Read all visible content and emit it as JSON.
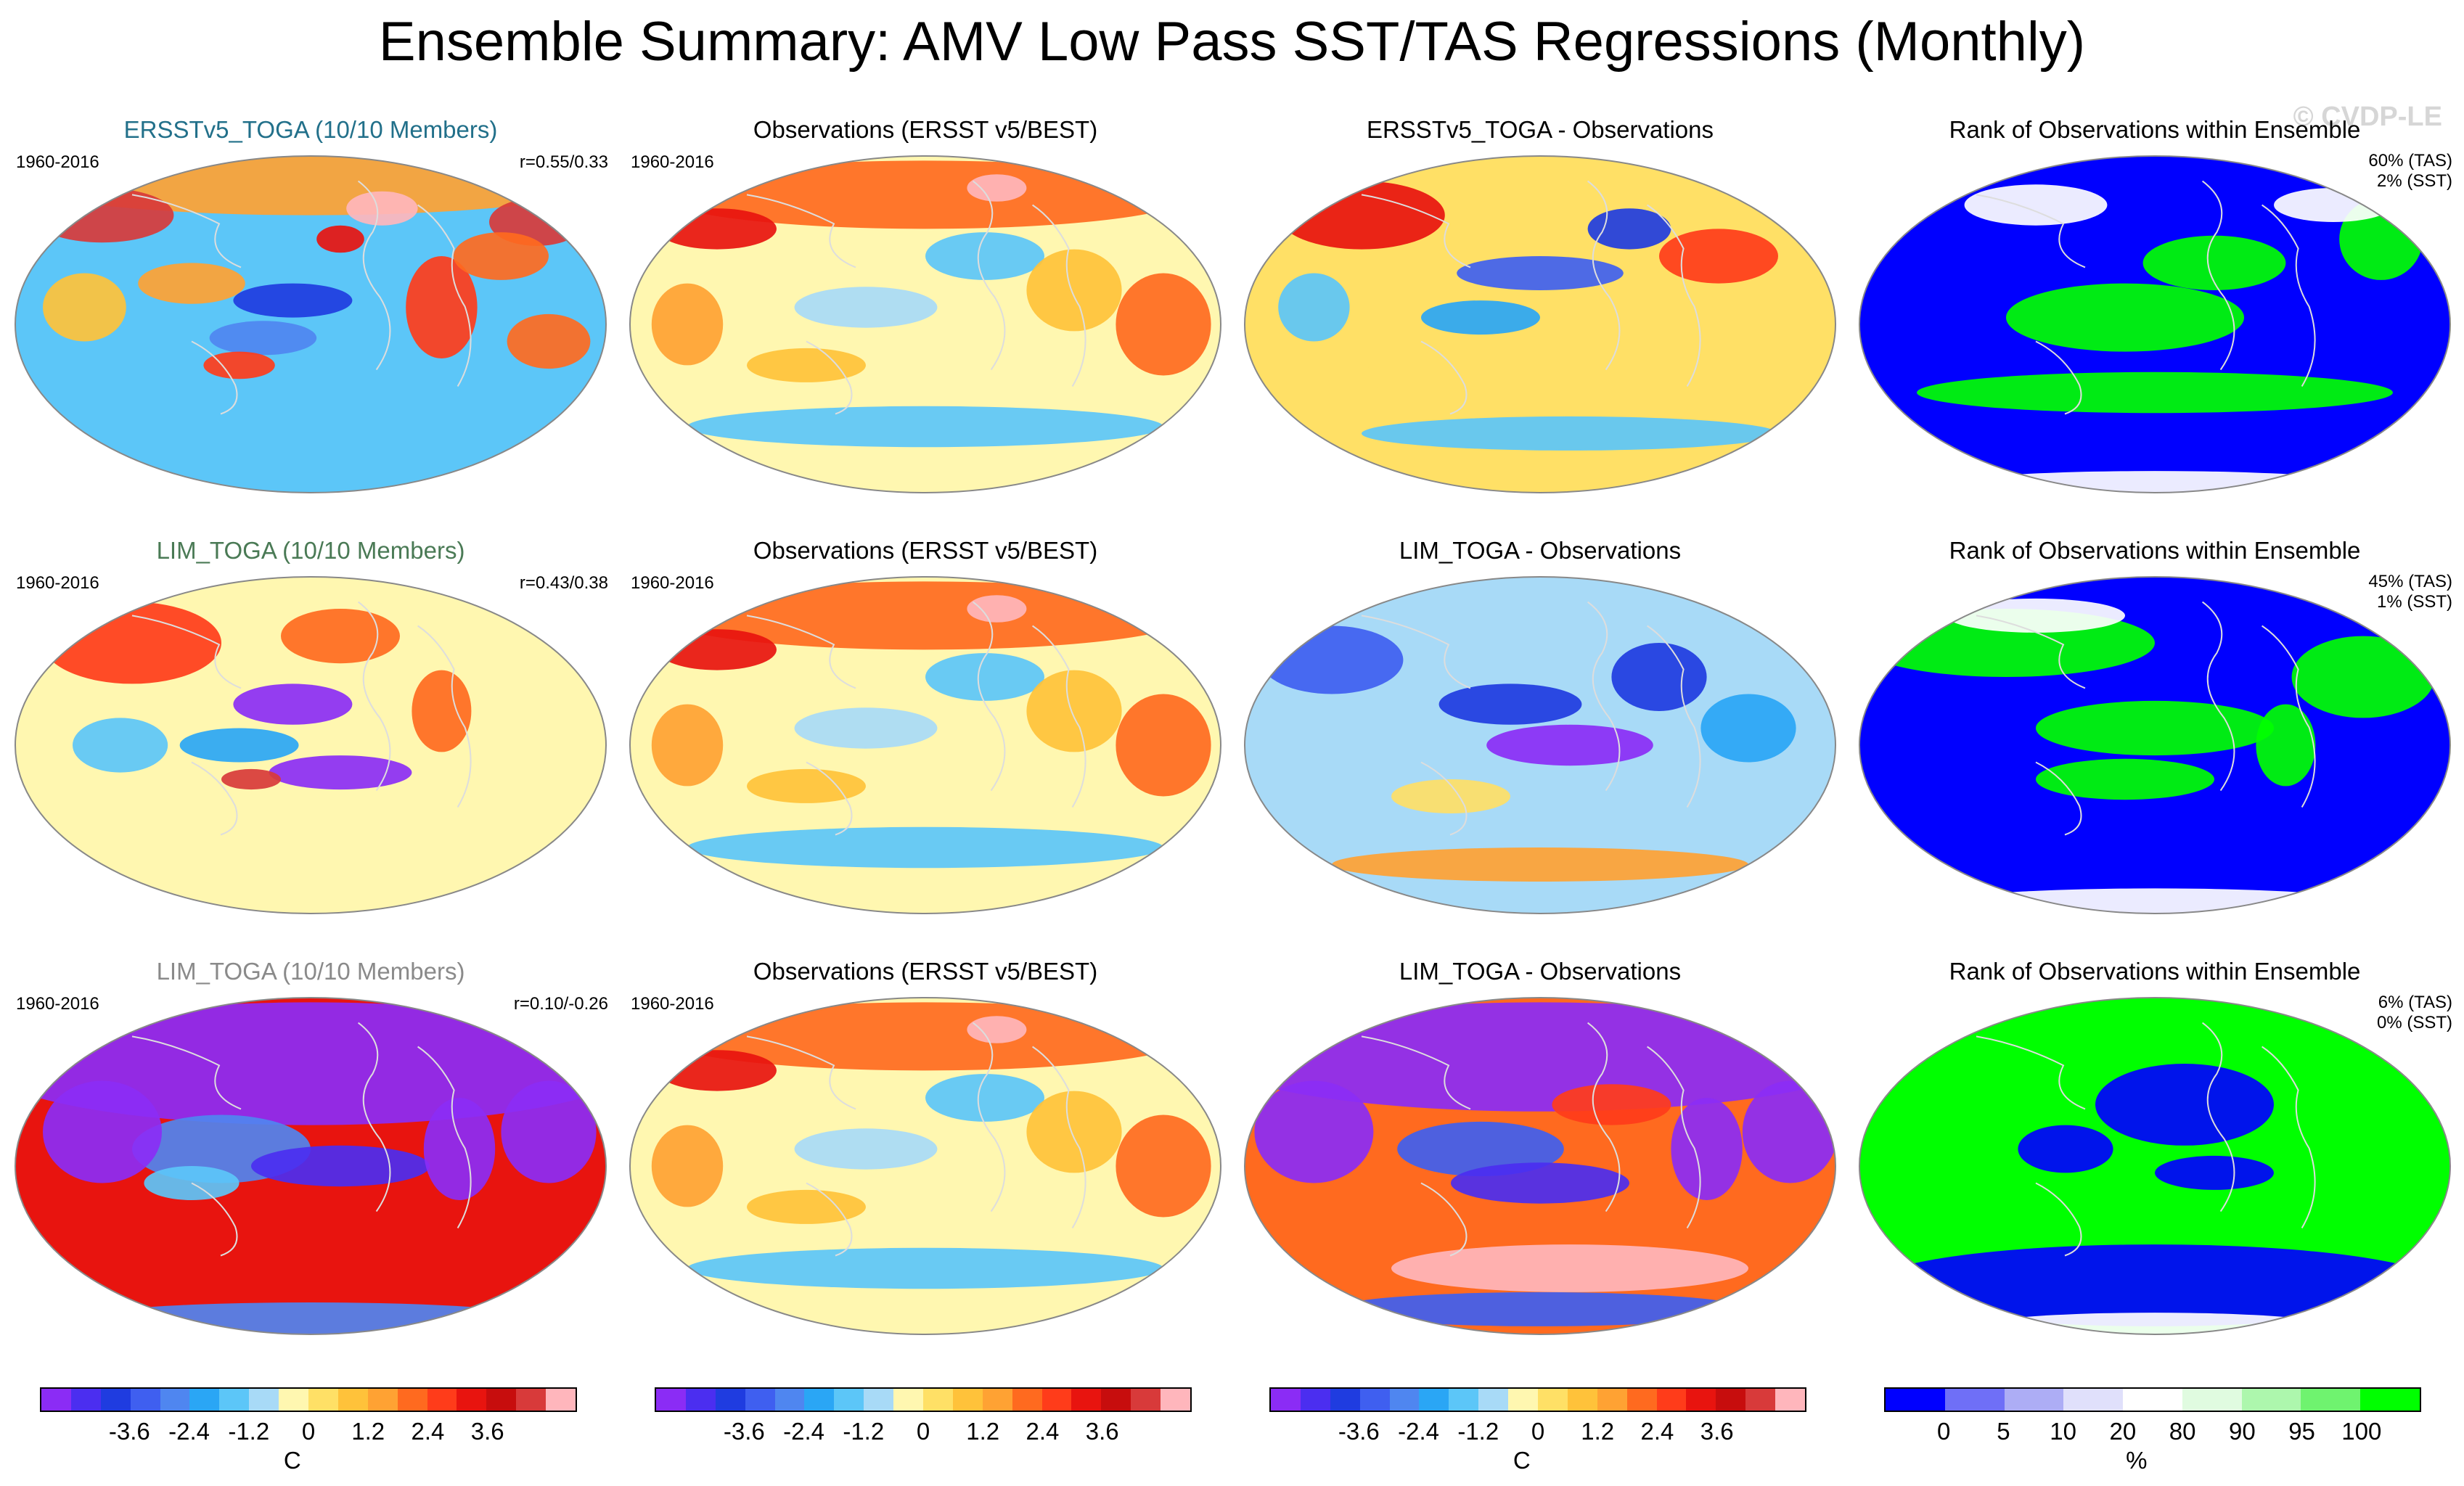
{
  "title": "Ensemble Summary: AMV Low Pass SST/TAS Regressions (Monthly)",
  "watermark": "© CVDP-LE",
  "colors": {
    "temp_scale": [
      "#8b2cf5",
      "#4b2ef0",
      "#1f3ce0",
      "#3f5ff0",
      "#4f86f0",
      "#2aa6f5",
      "#5cc6f8",
      "#a8daf7",
      "#fff7b0",
      "#ffe066",
      "#ffc23a",
      "#ffa233",
      "#ff6a1f",
      "#ff3c1a",
      "#e8140f",
      "#c70d0d",
      "#d83a3a",
      "#ffb6bc"
    ],
    "rank_scale": [
      "#0000ff",
      "#6f6ff7",
      "#adadf5",
      "#e0e0fb",
      "#ffffff",
      "#e0fbe0",
      "#adf7ad",
      "#6ff36f",
      "#00ff00"
    ],
    "title_colors": [
      "#22708a",
      "#4a7a55",
      "#8a8a8a"
    ]
  },
  "rows": [
    {
      "model_title": "ERSSTv5_TOGA (10/10 Members)",
      "period": "1960-2016",
      "corr": "r=0.55/0.33",
      "obs_title": "Observations (ERSST v5/BEST)",
      "obs_period": "1960-2016",
      "diff_title": "ERSSTv5_TOGA - Observations",
      "rank_title": "Rank of Observations within Ensemble",
      "rank_tas": "60% (TAS)",
      "rank_sst": "2% (SST)"
    },
    {
      "model_title": "LIM_TOGA (10/10 Members)",
      "period": "1960-2016",
      "corr": "r=0.43/0.38",
      "obs_title": "Observations (ERSST v5/BEST)",
      "obs_period": "1960-2016",
      "diff_title": "LIM_TOGA - Observations",
      "rank_title": "Rank of Observations within Ensemble",
      "rank_tas": "45% (TAS)",
      "rank_sst": "1% (SST)"
    },
    {
      "model_title": "LIM_TOGA (10/10 Members)",
      "period": "1960-2016",
      "corr": "r=0.10/-0.26",
      "obs_title": "Observations (ERSST v5/BEST)",
      "obs_period": "1960-2016",
      "diff_title": "LIM_TOGA - Observations",
      "rank_title": "Rank of Observations within Ensemble",
      "rank_tas": "6% (TAS)",
      "rank_sst": "0% (SST)"
    }
  ],
  "colorbars": [
    {
      "ticks": [
        "-3.6",
        "-2.4",
        "-1.2",
        "0",
        "1.2",
        "2.4",
        "3.6"
      ],
      "unit": "C"
    },
    {
      "ticks": [
        "-3.6",
        "-2.4",
        "-1.2",
        "0",
        "1.2",
        "2.4",
        "3.6"
      ],
      "unit": ""
    },
    {
      "ticks": [
        "-3.6",
        "-2.4",
        "-1.2",
        "0",
        "1.2",
        "2.4",
        "3.6"
      ],
      "unit": "C"
    },
    {
      "ticks": [
        "0",
        "5",
        "10",
        "20",
        "80",
        "90",
        "95",
        "100"
      ],
      "unit": "%"
    }
  ]
}
